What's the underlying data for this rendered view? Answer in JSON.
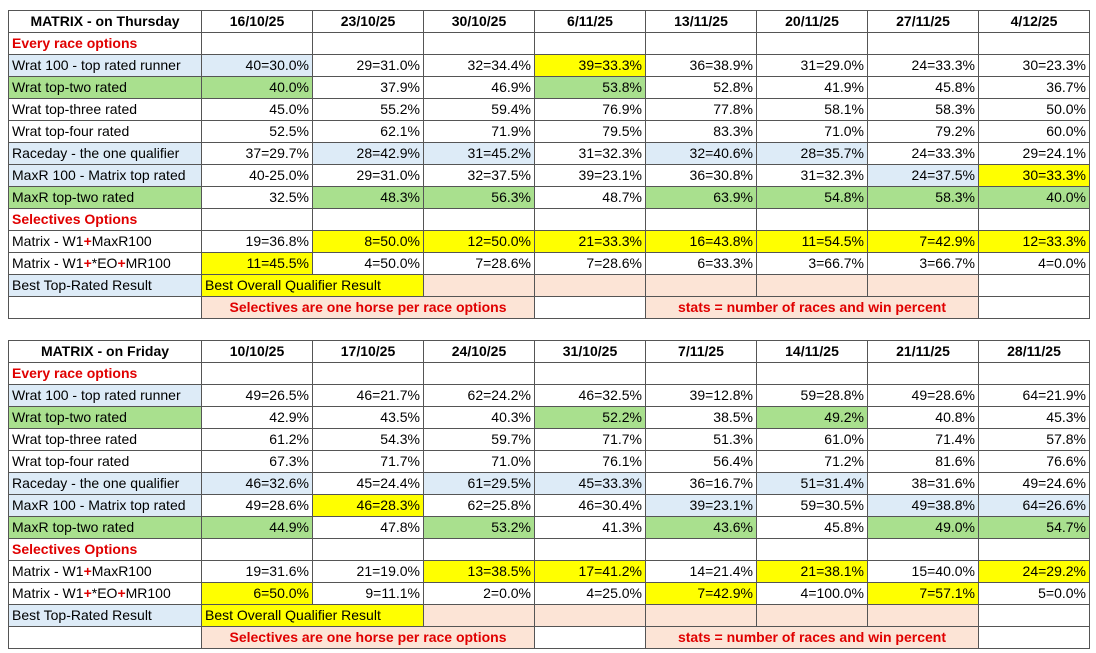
{
  "tables": [
    {
      "header": {
        "label": "MATRIX - on Thursday",
        "dates": [
          "16/10/25",
          "23/10/25",
          "30/10/25",
          "6/11/25",
          "13/11/25",
          "20/11/25",
          "27/11/25",
          "4/12/25"
        ]
      },
      "rows": [
        {
          "section": "Every race options"
        },
        {
          "label": "Wrat 100 - top rated runner",
          "label_fill": "#ddebf7",
          "cells": [
            "40=30.0%",
            "29=31.0%",
            "32=34.4%",
            "39=33.3%",
            "36=38.9%",
            "31=29.0%",
            "24=33.3%",
            "30=23.3%"
          ],
          "fills": [
            "#ddebf7",
            "#ffffff",
            "#ffffff",
            "#ffff00",
            "#ffffff",
            "#ffffff",
            "#ffffff",
            "#ffffff"
          ]
        },
        {
          "label": "Wrat top-two rated",
          "label_fill": "#a9e08e",
          "cells": [
            "40.0%",
            "37.9%",
            "46.9%",
            "53.8%",
            "52.8%",
            "41.9%",
            "45.8%",
            "36.7%"
          ],
          "fills": [
            "#a9e08e",
            "#ffffff",
            "#ffffff",
            "#a9e08e",
            "#ffffff",
            "#ffffff",
            "#ffffff",
            "#ffffff"
          ]
        },
        {
          "label": "Wrat top-three rated",
          "label_fill": "#ffffff",
          "cells": [
            "45.0%",
            "55.2%",
            "59.4%",
            "76.9%",
            "77.8%",
            "58.1%",
            "58.3%",
            "50.0%"
          ],
          "fills": [
            "#ffffff",
            "#ffffff",
            "#ffffff",
            "#ffffff",
            "#ffffff",
            "#ffffff",
            "#ffffff",
            "#ffffff"
          ]
        },
        {
          "label": "Wrat top-four rated",
          "label_fill": "#ffffff",
          "cells": [
            "52.5%",
            "62.1%",
            "71.9%",
            "79.5%",
            "83.3%",
            "71.0%",
            "79.2%",
            "60.0%"
          ],
          "fills": [
            "#ffffff",
            "#ffffff",
            "#ffffff",
            "#ffffff",
            "#ffffff",
            "#ffffff",
            "#ffffff",
            "#ffffff"
          ]
        },
        {
          "label": "Raceday - the one qualifier",
          "label_fill": "#ddebf7",
          "cells": [
            "37=29.7%",
            "28=42.9%",
            "31=45.2%",
            "31=32.3%",
            "32=40.6%",
            "28=35.7%",
            "24=33.3%",
            "29=24.1%"
          ],
          "fills": [
            "#ffffff",
            "#ddebf7",
            "#ddebf7",
            "#ffffff",
            "#ddebf7",
            "#ddebf7",
            "#ffffff",
            "#ffffff"
          ]
        },
        {
          "label": "MaxR 100 - Matrix top rated",
          "label_fill": "#ddebf7",
          "cells": [
            "40-25.0%",
            "29=31.0%",
            "32=37.5%",
            "39=23.1%",
            "36=30.8%",
            "31=32.3%",
            "24=37.5%",
            "30=33.3%"
          ],
          "fills": [
            "#ffffff",
            "#ffffff",
            "#ffffff",
            "#ffffff",
            "#ffffff",
            "#ffffff",
            "#ddebf7",
            "#ffff00"
          ]
        },
        {
          "label": "MaxR top-two rated",
          "label_fill": "#a9e08e",
          "cells": [
            "32.5%",
            "48.3%",
            "56.3%",
            "48.7%",
            "63.9%",
            "54.8%",
            "58.3%",
            "40.0%"
          ],
          "fills": [
            "#ffffff",
            "#a9e08e",
            "#a9e08e",
            "#ffffff",
            "#a9e08e",
            "#a9e08e",
            "#a9e08e",
            "#a9e08e"
          ]
        },
        {
          "section": "Selectives Options"
        },
        {
          "label": "Matrix - W1+MaxR100",
          "label_fill": "#ffffff",
          "cells": [
            "19=36.8%",
            "8=50.0%",
            "12=50.0%",
            "21=33.3%",
            "16=43.8%",
            "11=54.5%",
            "7=42.9%",
            "12=33.3%"
          ],
          "fills": [
            "#ffffff",
            "#ffff00",
            "#ffff00",
            "#ffff00",
            "#ffff00",
            "#ffff00",
            "#ffff00",
            "#ffff00"
          ]
        },
        {
          "label": "Matrix - W1+*EO+MR100",
          "label_fill": "#ffffff",
          "cells": [
            "11=45.5%",
            "4=50.0%",
            "7=28.6%",
            "7=28.6%",
            "6=33.3%",
            "3=66.7%",
            "3=66.7%",
            "4=0.0%"
          ],
          "fills": [
            "#ffff00",
            "#ffffff",
            "#ffffff",
            "#ffffff",
            "#ffffff",
            "#ffffff",
            "#ffffff",
            "#ffffff"
          ]
        },
        {
          "label": "Best Top-Rated Result",
          "label_fill": "#ddebf7",
          "note": "Best Overall Qualifier Result",
          "note_fill": "#ffff00"
        }
      ],
      "notes": [
        "Selectives are one horse per race options",
        "stats = number of races and win percent"
      ]
    },
    {
      "header": {
        "label": "MATRIX - on Friday",
        "dates": [
          "10/10/25",
          "17/10/25",
          "24/10/25",
          "31/10/25",
          "7/11/25",
          "14/11/25",
          "21/11/25",
          "28/11/25"
        ]
      },
      "rows": [
        {
          "section": "Every race options"
        },
        {
          "label": "Wrat 100 - top rated runner",
          "label_fill": "#ddebf7",
          "cells": [
            "49=26.5%",
            "46=21.7%",
            "62=24.2%",
            "46=32.5%",
            "39=12.8%",
            "59=28.8%",
            "49=28.6%",
            "64=21.9%"
          ],
          "fills": [
            "#ffffff",
            "#ffffff",
            "#ffffff",
            "#ffffff",
            "#ffffff",
            "#ffffff",
            "#ffffff",
            "#ffffff"
          ]
        },
        {
          "label": "Wrat top-two rated",
          "label_fill": "#a9e08e",
          "cells": [
            "42.9%",
            "43.5%",
            "40.3%",
            "52.2%",
            "38.5%",
            "49.2%",
            "40.8%",
            "45.3%"
          ],
          "fills": [
            "#ffffff",
            "#ffffff",
            "#ffffff",
            "#a9e08e",
            "#ffffff",
            "#a9e08e",
            "#ffffff",
            "#ffffff"
          ]
        },
        {
          "label": "Wrat top-three rated",
          "label_fill": "#ffffff",
          "cells": [
            "61.2%",
            "54.3%",
            "59.7%",
            "71.7%",
            "51.3%",
            "61.0%",
            "71.4%",
            "57.8%"
          ],
          "fills": [
            "#ffffff",
            "#ffffff",
            "#ffffff",
            "#ffffff",
            "#ffffff",
            "#ffffff",
            "#ffffff",
            "#ffffff"
          ]
        },
        {
          "label": "Wrat top-four rated",
          "label_fill": "#ffffff",
          "cells": [
            "67.3%",
            "71.7%",
            "71.0%",
            "76.1%",
            "56.4%",
            "71.2%",
            "81.6%",
            "76.6%"
          ],
          "fills": [
            "#ffffff",
            "#ffffff",
            "#ffffff",
            "#ffffff",
            "#ffffff",
            "#ffffff",
            "#ffffff",
            "#ffffff"
          ]
        },
        {
          "label": "Raceday - the one qualifier",
          "label_fill": "#ddebf7",
          "cells": [
            "46=32.6%",
            "45=24.4%",
            "61=29.5%",
            "45=33.3%",
            "36=16.7%",
            "51=31.4%",
            "38=31.6%",
            "49=24.6%"
          ],
          "fills": [
            "#ddebf7",
            "#ffffff",
            "#ddebf7",
            "#ddebf7",
            "#ffffff",
            "#ddebf7",
            "#ffffff",
            "#ffffff"
          ]
        },
        {
          "label": "MaxR 100 - Matrix top rated",
          "label_fill": "#ddebf7",
          "cells": [
            "49=28.6%",
            "46=28.3%",
            "62=25.8%",
            "46=30.4%",
            "39=23.1%",
            "59=30.5%",
            "49=38.8%",
            "64=26.6%"
          ],
          "fills": [
            "#ffffff",
            "#ffff00",
            "#ffffff",
            "#ffffff",
            "#ddebf7",
            "#ffffff",
            "#ddebf7",
            "#ddebf7"
          ]
        },
        {
          "label": "MaxR top-two rated",
          "label_fill": "#a9e08e",
          "cells": [
            "44.9%",
            "47.8%",
            "53.2%",
            "41.3%",
            "43.6%",
            "45.8%",
            "49.0%",
            "54.7%"
          ],
          "fills": [
            "#a9e08e",
            "#ffffff",
            "#a9e08e",
            "#ffffff",
            "#a9e08e",
            "#ffffff",
            "#a9e08e",
            "#a9e08e"
          ]
        },
        {
          "section": "Selectives Options"
        },
        {
          "label": "Matrix - W1+MaxR100",
          "label_fill": "#ffffff",
          "cells": [
            "19=31.6%",
            "21=19.0%",
            "13=38.5%",
            "17=41.2%",
            "14=21.4%",
            "21=38.1%",
            "15=40.0%",
            "24=29.2%"
          ],
          "fills": [
            "#ffffff",
            "#ffffff",
            "#ffff00",
            "#ffff00",
            "#ffffff",
            "#ffff00",
            "#ffffff",
            "#ffff00"
          ]
        },
        {
          "label": "Matrix - W1+*EO+MR100",
          "label_fill": "#ffffff",
          "cells": [
            "6=50.0%",
            "9=11.1%",
            "2=0.0%",
            "4=25.0%",
            "7=42.9%",
            "4=100.0%",
            "7=57.1%",
            "5=0.0%"
          ],
          "fills": [
            "#ffff00",
            "#ffffff",
            "#ffffff",
            "#ffffff",
            "#ffff00",
            "#ffffff",
            "#ffff00",
            "#ffffff"
          ]
        },
        {
          "label": "Best Top-Rated Result",
          "label_fill": "#ddebf7",
          "note": "Best Overall Qualifier Result",
          "note_fill": "#ffff00"
        }
      ],
      "notes": [
        "Selectives are one horse per race options",
        "stats = number of races and win percent"
      ]
    }
  ]
}
